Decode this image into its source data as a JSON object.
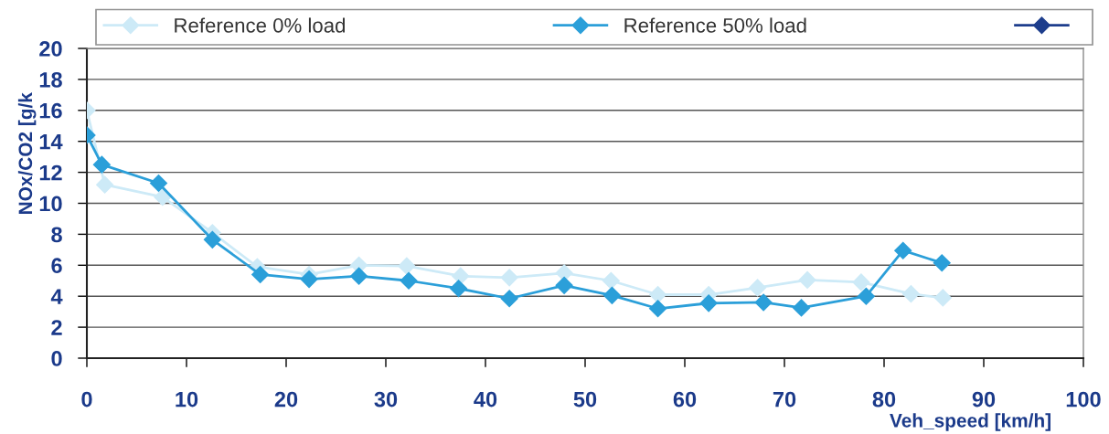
{
  "chart_data": {
    "type": "line",
    "xlabel": "Veh_speed [km/h]",
    "ylabel": "NOx/CO2 [g/k",
    "xlim": [
      0,
      100
    ],
    "xticks": [
      0,
      10,
      20,
      30,
      40,
      50,
      60,
      70,
      80,
      90,
      100
    ],
    "ylim": [
      0,
      20
    ],
    "yticks": [
      0,
      2,
      4,
      6,
      8,
      10,
      12,
      14,
      16,
      18,
      20
    ],
    "grid": "y",
    "legend": "top",
    "marker": "diamond",
    "line_style": "solid",
    "series": [
      {
        "name": "Reference 0% load",
        "color": "#cdeaf7",
        "x": [
          0,
          1.8,
          7.6,
          12.6,
          17.1,
          22.3,
          27.3,
          32.1,
          37.5,
          42.4,
          47.9,
          52.6,
          57.3,
          62.4,
          67.3,
          72.3,
          77.7,
          82.7,
          85.9
        ],
        "values": [
          16.0,
          11.2,
          10.4,
          8.1,
          5.9,
          5.4,
          6.0,
          5.95,
          5.3,
          5.2,
          5.5,
          5.0,
          4.1,
          4.1,
          4.55,
          5.05,
          4.9,
          4.15,
          3.9
        ]
      },
      {
        "name": "Reference 50% load",
        "color": "#2b9fd9",
        "x": [
          0,
          1.5,
          7.2,
          12.6,
          17.4,
          22.3,
          27.3,
          32.3,
          37.3,
          42.4,
          47.9,
          52.7,
          57.3,
          62.4,
          67.9,
          71.7,
          78.2,
          81.9,
          85.8
        ],
        "values": [
          14.4,
          12.5,
          11.3,
          7.65,
          5.4,
          5.1,
          5.3,
          5.0,
          4.5,
          3.85,
          4.7,
          4.05,
          3.2,
          3.55,
          3.6,
          3.25,
          4.0,
          6.95,
          6.15
        ]
      },
      {
        "color": "#1d3d8c"
      }
    ]
  }
}
